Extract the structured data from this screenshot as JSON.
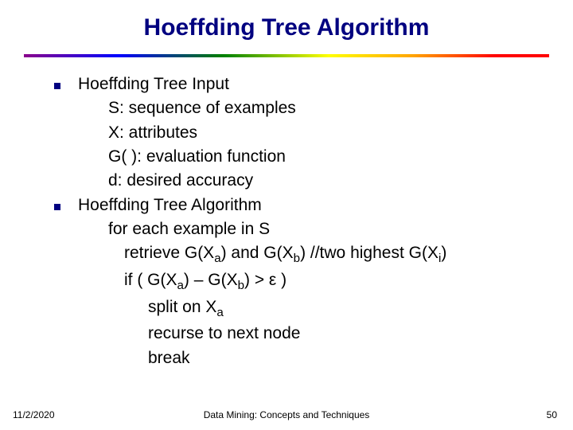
{
  "title": "Hoeffding Tree Algorithm",
  "title_fontsize": 30,
  "title_color": "#000080",
  "divider_colors": [
    "#8b008b",
    "#0000ff",
    "#008000",
    "#ffff00",
    "#ffa500",
    "#ff0000"
  ],
  "body_fontsize": 21,
  "body_color": "#000000",
  "bullet_color": "#000080",
  "section1": {
    "heading": "Hoeffding Tree Input",
    "items": [
      "S: sequence of examples",
      "X: attributes",
      "G( ): evaluation function",
      "d: desired accuracy"
    ]
  },
  "section2": {
    "heading": "Hoeffding Tree Algorithm",
    "line1": "for each example in S",
    "retrieve_prefix": "retrieve G(X",
    "retrieve_sub_a": "a",
    "retrieve_mid": ") and G(X",
    "retrieve_sub_b": "b",
    "retrieve_suffix": ")   //two highest G(X",
    "retrieve_sub_i": "i",
    "retrieve_end": ")",
    "if_prefix": "if ( G(X",
    "if_sub_a": "a",
    "if_mid": ") – G(X",
    "if_sub_b": "b",
    "if_suffix": ") > ε )",
    "split_prefix": "split on X",
    "split_sub_a": "a",
    "recurse": "recurse to next node",
    "break": "break"
  },
  "footer": {
    "date": "11/2/2020",
    "center": "Data Mining: Concepts and Techniques",
    "page": "50",
    "fontsize": 12
  }
}
